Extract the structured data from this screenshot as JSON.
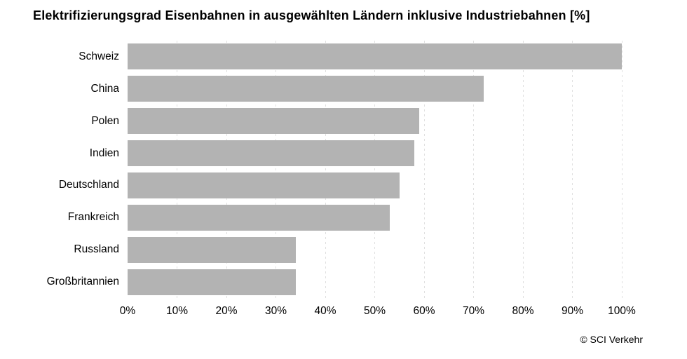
{
  "title": "Elektrifizierungsgrad Eisenbahnen in ausgewählten Ländern inklusive Industriebahnen [%]",
  "attribution": "© SCI Verkehr",
  "chart_data": {
    "type": "bar",
    "orientation": "horizontal",
    "title": "Elektrifizierungsgrad Eisenbahnen in ausgewählten Ländern inklusive Industriebahnen [%]",
    "categories": [
      "Schweiz",
      "China",
      "Polen",
      "Indien",
      "Deutschland",
      "Frankreich",
      "Russland",
      "Großbritannien"
    ],
    "values": [
      100,
      72,
      59,
      58,
      55,
      53,
      34,
      34
    ],
    "unit": "%",
    "xlim": [
      0,
      100
    ],
    "x_ticks": [
      "0%",
      "10%",
      "20%",
      "30%",
      "40%",
      "50%",
      "60%",
      "70%",
      "80%",
      "90%",
      "100%"
    ],
    "grid": "vertical-dashed",
    "legend": "none",
    "bar_color": "#b3b3b3",
    "gridline_color": "#e0e0e0",
    "source": "© SCI Verkehr"
  }
}
